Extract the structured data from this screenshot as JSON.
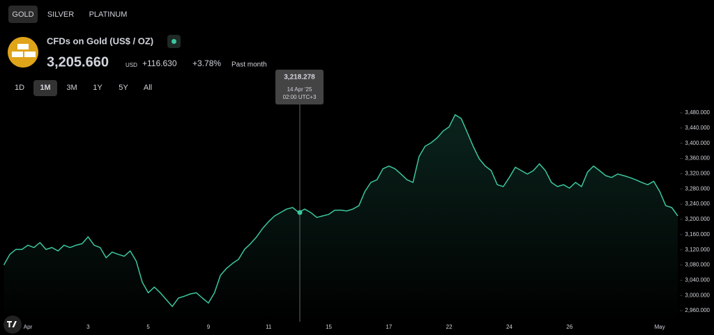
{
  "tabs": [
    "GOLD",
    "SILVER",
    "PLATINUM"
  ],
  "header": {
    "title": "CFDs on Gold (US$ / OZ)",
    "price": "3,205.660",
    "currency": "USD",
    "change": "+116.630",
    "change_pct": "+3.78%",
    "period": "Past month"
  },
  "ranges": [
    "1D",
    "1M",
    "3M",
    "1Y",
    "5Y",
    "All"
  ],
  "tooltip": {
    "value": "3,218.278",
    "date": "14 Apr '25",
    "time": "02:00 UTC+3"
  },
  "chart_data": {
    "type": "line",
    "color": "#3cc79f",
    "categories": [
      null,
      null,
      null,
      null,
      "Apr",
      null,
      null,
      null,
      null,
      null,
      null,
      null,
      null,
      null,
      "3",
      null,
      null,
      null,
      null,
      null,
      null,
      null,
      null,
      null,
      "5",
      null,
      null,
      null,
      null,
      null,
      null,
      null,
      null,
      null,
      "9",
      null,
      null,
      null,
      null,
      null,
      null,
      null,
      null,
      null,
      "11",
      null,
      null,
      null,
      null,
      null,
      null,
      null,
      null,
      null,
      "15",
      null,
      null,
      null,
      null,
      null,
      null,
      null,
      null,
      null,
      "17",
      null,
      null,
      null,
      null,
      null,
      null,
      null,
      null,
      null,
      "22",
      null,
      null,
      null,
      null,
      null,
      null,
      null,
      null,
      null,
      "24",
      null,
      null,
      null,
      null,
      null,
      null,
      null,
      null,
      null,
      "26",
      null,
      null,
      null,
      null,
      null,
      null,
      null,
      null,
      null,
      null,
      null,
      null,
      null,
      null,
      "May",
      null,
      null,
      null
    ],
    "values": [
      3080,
      3108,
      3121,
      3121,
      3132,
      3126,
      3139,
      3121,
      3126,
      3117,
      3132,
      3126,
      3132,
      3136,
      3154,
      3132,
      3126,
      3099,
      3114,
      3108,
      3103,
      3117,
      3090,
      3035,
      3007,
      3022,
      3007,
      2989,
      2971,
      2993,
      2998,
      3004,
      3007,
      2993,
      2980,
      3007,
      3053,
      3071,
      3084,
      3095,
      3121,
      3136,
      3154,
      3176,
      3194,
      3209,
      3218,
      3227,
      3231,
      3218,
      3227,
      3218,
      3205,
      3209,
      3213,
      3224,
      3224,
      3222,
      3227,
      3236,
      3273,
      3297,
      3304,
      3333,
      3340,
      3333,
      3319,
      3304,
      3297,
      3365,
      3392,
      3401,
      3414,
      3432,
      3443,
      3475,
      3465,
      3429,
      3392,
      3359,
      3340,
      3328,
      3291,
      3286,
      3310,
      3337,
      3328,
      3319,
      3328,
      3346,
      3328,
      3297,
      3286,
      3291,
      3282,
      3297,
      3286,
      3324,
      3340,
      3328,
      3315,
      3310,
      3319,
      3315,
      3310,
      3304,
      3297,
      3291,
      3300,
      3273,
      3236,
      3231,
      3209
    ],
    "ylim": [
      2940,
      3500
    ],
    "yticks": [
      {
        "value": 2960,
        "label": "2,960.000"
      },
      {
        "value": 3000,
        "label": "3,000.000"
      },
      {
        "value": 3040,
        "label": "3,040.000"
      },
      {
        "value": 3080,
        "label": "3,080.000"
      },
      {
        "value": 3120,
        "label": "3,120.000"
      },
      {
        "value": 3160,
        "label": "3,160.000"
      },
      {
        "value": 3200,
        "label": "3,200.000"
      },
      {
        "value": 3240,
        "label": "3,240.000"
      },
      {
        "value": 3280,
        "label": "3,280.000"
      },
      {
        "value": 3320,
        "label": "3,320.000"
      },
      {
        "value": 3360,
        "label": "3,360.000"
      },
      {
        "value": 3400,
        "label": "3,400.000"
      },
      {
        "value": 3440,
        "label": "3,440.000"
      },
      {
        "value": 3480,
        "label": "3,480.000"
      }
    ]
  }
}
